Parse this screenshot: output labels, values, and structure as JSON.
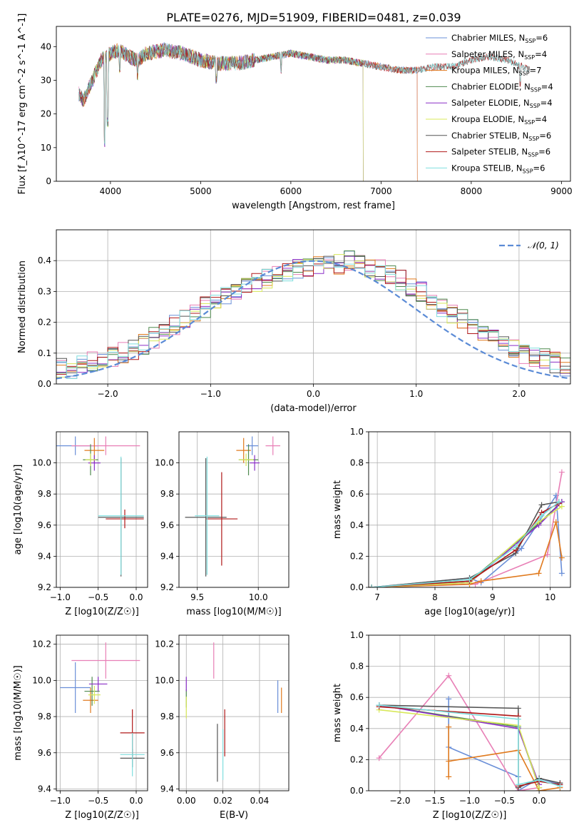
{
  "figure_title": "PLATE=0276, MJD=51909, FIBERID=0481, z=0.039",
  "colors": {
    "chabrier_miles": "#6a8fd8",
    "salpeter_miles": "#e87fb6",
    "kroupa_miles": "#e07a1e",
    "chabrier_elodie": "#4f8a4f",
    "salpeter_elodie": "#8a2fc6",
    "kroupa_elodie": "#d8e85a",
    "chabrier_stelib": "#555555",
    "salpeter_stelib": "#b01818",
    "kroupa_stelib": "#7fdede",
    "normal_curve": "#5b8bd6"
  },
  "chart_data": [
    {
      "type": "line",
      "xlabel": "wavelength [Angstrom, rest frame]",
      "ylabel": "Flux [f_λ10^-17 erg cm^-2 s^-1 A^-1]",
      "xlim": [
        3400,
        9100
      ],
      "ylim": [
        0,
        46
      ],
      "xticks": [
        4000,
        5000,
        6000,
        7000,
        8000,
        9000
      ],
      "yticks": [
        0,
        10,
        20,
        30,
        40
      ],
      "legend_position": "top-right",
      "series": [
        {
          "name": "Chabrier MILES, N_SSP=6",
          "color_key": "chabrier_miles",
          "x": [
            3650,
            7400
          ]
        },
        {
          "name": "Salpeter MILES, N_SSP=4",
          "color_key": "salpeter_miles",
          "x": [
            3650,
            7400
          ]
        },
        {
          "name": "Kroupa MILES, N_SSP=7",
          "color_key": "kroupa_miles",
          "x": [
            3650,
            7400
          ]
        },
        {
          "name": "Chabrier ELODIE, N_SSP=4",
          "color_key": "chabrier_elodie",
          "x": [
            3650,
            6800
          ]
        },
        {
          "name": "Salpeter ELODIE, N_SSP=4",
          "color_key": "salpeter_elodie",
          "x": [
            3650,
            6800
          ]
        },
        {
          "name": "Kroupa ELODIE, N_SSP=4",
          "color_key": "kroupa_elodie",
          "x": [
            3650,
            6800
          ]
        },
        {
          "name": "Chabrier STELIB, N_SSP=6",
          "color_key": "chabrier_stelib",
          "x": [
            3650,
            8650
          ]
        },
        {
          "name": "Salpeter STELIB, N_SSP=6",
          "color_key": "salpeter_stelib",
          "x": [
            3650,
            8650
          ]
        },
        {
          "name": "Kroupa STELIB, N_SSP=6",
          "color_key": "kroupa_stelib",
          "x": [
            3650,
            8650
          ]
        }
      ],
      "continuum_x": [
        3650,
        3700,
        3800,
        3900,
        4000,
        4100,
        4200,
        4300,
        4400,
        4600,
        4800,
        5000,
        5200,
        5400,
        5600,
        5800,
        6000,
        6200,
        6400,
        6600,
        6800,
        7000,
        7200,
        7400,
        7600,
        7800,
        8000,
        8200,
        8400,
        8650
      ],
      "continuum_y": [
        26,
        24,
        30,
        36,
        38,
        39,
        37,
        36,
        38,
        39,
        38,
        36,
        35,
        35,
        36,
        37,
        38,
        37,
        36,
        36,
        35,
        34,
        33,
        33,
        34,
        34,
        36,
        37,
        36,
        33
      ],
      "absorption_lines": [
        {
          "x": 3934,
          "depth_to": 10
        },
        {
          "x": 3968,
          "depth_to": 16
        },
        {
          "x": 4102,
          "depth_to": 32
        },
        {
          "x": 4300,
          "depth_to": 30
        },
        {
          "x": 5175,
          "depth_to": 29
        },
        {
          "x": 5890,
          "depth_to": 32
        },
        {
          "x": 8542,
          "depth_to": 28
        }
      ]
    },
    {
      "type": "bar",
      "xlabel": "(data-model)/error",
      "ylabel": "Normed distribution",
      "xlim": [
        -2.5,
        2.5
      ],
      "ylim": [
        0,
        0.5
      ],
      "xticks": [
        -2,
        -1,
        0,
        1,
        2
      ],
      "yticks": [
        0.0,
        0.1,
        0.2,
        0.3,
        0.4
      ],
      "bin_edges_start": -2.5,
      "bin_width": 0.1,
      "legend_position": "top-right",
      "normal_curve": {
        "name": "𝒩(0, 1)",
        "mean": 0,
        "sigma": 1
      },
      "histogram_profile": [
        0.05,
        0.05,
        0.06,
        0.07,
        0.08,
        0.09,
        0.1,
        0.11,
        0.13,
        0.15,
        0.17,
        0.19,
        0.21,
        0.23,
        0.25,
        0.27,
        0.29,
        0.3,
        0.32,
        0.33,
        0.34,
        0.35,
        0.36,
        0.37,
        0.38,
        0.38,
        0.39,
        0.39,
        0.4,
        0.39,
        0.38,
        0.37,
        0.36,
        0.34,
        0.32,
        0.3,
        0.27,
        0.25,
        0.23,
        0.21,
        0.19,
        0.17,
        0.15,
        0.13,
        0.12,
        0.1,
        0.09,
        0.08,
        0.07,
        0.06
      ]
    },
    {
      "type": "scatter",
      "xlabel": "Z [log10(Z/Z☉)]",
      "ylabel": "age [log10(age/yr)]",
      "xlim": [
        -1.05,
        0.15
      ],
      "ylim": [
        9.2,
        10.2
      ],
      "xticks": [
        -1.0,
        -0.5,
        0.0
      ],
      "yticks": [
        9.2,
        9.4,
        9.6,
        9.8,
        10.0
      ],
      "points": [
        {
          "key": "chabrier_miles",
          "x": -0.8,
          "y": 10.11,
          "xerr": 0.3,
          "yerr": 0.06
        },
        {
          "key": "salpeter_miles",
          "x": -0.4,
          "y": 10.11,
          "xerr": 0.45,
          "yerr": 0.06
        },
        {
          "key": "kroupa_miles",
          "x": -0.55,
          "y": 10.08,
          "xerr": 0.13,
          "yerr": 0.08
        },
        {
          "key": "chabrier_elodie",
          "x": -0.6,
          "y": 10.02,
          "xerr": 0.1,
          "yerr": 0.1
        },
        {
          "key": "salpeter_elodie",
          "x": -0.55,
          "y": 10.0,
          "xerr": 0.08,
          "yerr": 0.05
        },
        {
          "key": "kroupa_elodie",
          "x": -0.6,
          "y": 10.02,
          "xerr": 0.07,
          "yerr": 0.04
        },
        {
          "key": "chabrier_stelib",
          "x": -0.2,
          "y": 9.65,
          "xerr": 0.3,
          "yerr": 0.38
        },
        {
          "key": "salpeter_stelib",
          "x": -0.15,
          "y": 9.64,
          "xerr": 0.25,
          "yerr": 0.06
        },
        {
          "key": "kroupa_stelib",
          "x": -0.2,
          "y": 9.66,
          "xerr": 0.3,
          "yerr": 0.38
        }
      ]
    },
    {
      "type": "scatter",
      "xlabel": "mass [log10(M/M☉)]",
      "ylabel": "",
      "xlim": [
        9.35,
        10.25
      ],
      "ylim": [
        9.2,
        10.2
      ],
      "xticks": [
        9.5,
        10.0
      ],
      "yticks": [
        9.2,
        9.4,
        9.6,
        9.8,
        10.0
      ],
      "points": [
        {
          "key": "chabrier_miles",
          "x": 9.95,
          "y": 10.11,
          "xerr": 0.05,
          "yerr": 0.06
        },
        {
          "key": "salpeter_miles",
          "x": 10.12,
          "y": 10.11,
          "xerr": 0.06,
          "yerr": 0.06
        },
        {
          "key": "kroupa_miles",
          "x": 9.88,
          "y": 10.08,
          "xerr": 0.06,
          "yerr": 0.08
        },
        {
          "key": "chabrier_elodie",
          "x": 9.92,
          "y": 10.02,
          "xerr": 0.08,
          "yerr": 0.1
        },
        {
          "key": "salpeter_elodie",
          "x": 9.97,
          "y": 10.0,
          "xerr": 0.04,
          "yerr": 0.05
        },
        {
          "key": "kroupa_elodie",
          "x": 9.9,
          "y": 10.02,
          "xerr": 0.06,
          "yerr": 0.04
        },
        {
          "key": "chabrier_stelib",
          "x": 9.57,
          "y": 9.65,
          "xerr": 0.17,
          "yerr": 0.38
        },
        {
          "key": "salpeter_stelib",
          "x": 9.7,
          "y": 9.64,
          "xerr": 0.13,
          "yerr": 0.3
        },
        {
          "key": "kroupa_stelib",
          "x": 9.58,
          "y": 9.66,
          "xerr": 0.1,
          "yerr": 0.38
        }
      ]
    },
    {
      "type": "line",
      "xlabel": "age [log10(age/yr)]",
      "ylabel": "mass weight",
      "xlim": [
        6.85,
        10.35
      ],
      "ylim": [
        0,
        1.0
      ],
      "xticks": [
        7,
        8,
        9,
        10
      ],
      "yticks": [
        0.0,
        0.2,
        0.4,
        0.6,
        0.8,
        1.0
      ],
      "series": [
        {
          "key": "chabrier_miles",
          "x": [
            6.9,
            8.6,
            8.8,
            9.5,
            10.1,
            10.2
          ],
          "y": [
            0.0,
            0.06,
            0.03,
            0.25,
            0.59,
            0.09
          ]
        },
        {
          "key": "salpeter_miles",
          "x": [
            6.9,
            8.7,
            9.95,
            10.2
          ],
          "y": [
            0.0,
            0.02,
            0.21,
            0.74
          ]
        },
        {
          "key": "kroupa_miles",
          "x": [
            6.9,
            8.6,
            8.8,
            9.8,
            10.1,
            10.2
          ],
          "y": [
            0.0,
            0.02,
            0.04,
            0.09,
            0.42,
            0.19
          ]
        },
        {
          "key": "chabrier_elodie",
          "x": [
            6.9,
            8.6,
            9.8,
            10.2
          ],
          "y": [
            0.0,
            0.04,
            0.41,
            0.55
          ]
        },
        {
          "key": "salpeter_elodie",
          "x": [
            6.9,
            8.6,
            9.8,
            10.2
          ],
          "y": [
            0.0,
            0.03,
            0.4,
            0.55
          ]
        },
        {
          "key": "kroupa_elodie",
          "x": [
            6.9,
            8.6,
            9.8,
            10.2
          ],
          "y": [
            0.0,
            0.03,
            0.42,
            0.52
          ]
        },
        {
          "key": "chabrier_stelib",
          "x": [
            6.9,
            8.6,
            9.4,
            9.85,
            10.15
          ],
          "y": [
            0.0,
            0.06,
            0.22,
            0.53,
            0.55
          ]
        },
        {
          "key": "salpeter_stelib",
          "x": [
            6.9,
            8.6,
            9.4,
            9.85,
            10.15
          ],
          "y": [
            0.0,
            0.04,
            0.24,
            0.48,
            0.54
          ]
        },
        {
          "key": "kroupa_stelib",
          "x": [
            6.9,
            8.6,
            9.4,
            9.85,
            10.15
          ],
          "y": [
            0.0,
            0.05,
            0.26,
            0.46,
            0.55
          ]
        }
      ]
    },
    {
      "type": "scatter",
      "xlabel": "Z [log10(Z/Z☉)]",
      "ylabel": "mass [log10(M/M☉)]",
      "xlim": [
        -1.05,
        0.15
      ],
      "ylim": [
        9.39,
        10.25
      ],
      "xticks": [
        -1.0,
        -0.5,
        0.0
      ],
      "yticks": [
        9.4,
        9.6,
        9.8,
        10.0,
        10.2
      ],
      "points": [
        {
          "key": "chabrier_miles",
          "x": -0.8,
          "y": 9.96,
          "xerr": 0.2,
          "yerr": 0.14
        },
        {
          "key": "salpeter_miles",
          "x": -0.4,
          "y": 10.11,
          "xerr": 0.45,
          "yerr": 0.1
        },
        {
          "key": "kroupa_miles",
          "x": -0.6,
          "y": 9.89,
          "xerr": 0.1,
          "yerr": 0.07
        },
        {
          "key": "chabrier_elodie",
          "x": -0.58,
          "y": 9.94,
          "xerr": 0.1,
          "yerr": 0.08
        },
        {
          "key": "salpeter_elodie",
          "x": -0.5,
          "y": 9.98,
          "xerr": 0.12,
          "yerr": 0.04
        },
        {
          "key": "kroupa_elodie",
          "x": -0.55,
          "y": 9.92,
          "xerr": 0.08,
          "yerr": 0.05
        },
        {
          "key": "chabrier_stelib",
          "x": -0.05,
          "y": 9.57,
          "xerr": 0.16,
          "yerr": 0.05
        },
        {
          "key": "salpeter_stelib",
          "x": -0.05,
          "y": 9.71,
          "xerr": 0.16,
          "yerr": 0.13
        },
        {
          "key": "kroupa_stelib",
          "x": -0.05,
          "y": 9.59,
          "xerr": 0.16,
          "yerr": 0.12
        }
      ]
    },
    {
      "type": "scatter",
      "xlabel": "E(B-V)",
      "ylabel": "",
      "xlim": [
        -0.004,
        0.056
      ],
      "ylim": [
        9.39,
        10.25
      ],
      "xticks": [
        0.0,
        0.02,
        0.04
      ],
      "yticks": [
        9.4,
        9.6,
        9.8,
        10.0,
        10.2
      ],
      "points": [
        {
          "key": "chabrier_miles",
          "x": 0.05,
          "y": 9.91,
          "xerr": 0,
          "yerr": 0.09
        },
        {
          "key": "salpeter_miles",
          "x": 0.015,
          "y": 10.11,
          "xerr": 0,
          "yerr": 0.1
        },
        {
          "key": "kroupa_miles",
          "x": 0.052,
          "y": 9.89,
          "xerr": 0,
          "yerr": 0.07
        },
        {
          "key": "chabrier_elodie",
          "x": 0.0,
          "y": 9.9,
          "xerr": 0,
          "yerr": 0.05
        },
        {
          "key": "salpeter_elodie",
          "x": 0.0,
          "y": 9.98,
          "xerr": 0,
          "yerr": 0.04
        },
        {
          "key": "kroupa_elodie",
          "x": 0.0,
          "y": 9.85,
          "xerr": 0,
          "yerr": 0.06
        },
        {
          "key": "chabrier_stelib",
          "x": 0.017,
          "y": 9.6,
          "xerr": 0,
          "yerr": 0.16
        },
        {
          "key": "salpeter_stelib",
          "x": 0.021,
          "y": 9.71,
          "xerr": 0,
          "yerr": 0.13
        },
        {
          "key": "kroupa_stelib",
          "x": 0.02,
          "y": 9.59,
          "xerr": 0,
          "yerr": 0.14
        }
      ]
    },
    {
      "type": "line",
      "xlabel": "Z [log10(Z/Z☉)]",
      "ylabel": "mass weight",
      "xlim": [
        -2.45,
        0.45
      ],
      "ylim": [
        0,
        1.0
      ],
      "xticks": [
        -2.0,
        -1.5,
        -1.0,
        -0.5,
        0.0
      ],
      "yticks": [
        0.0,
        0.2,
        0.4,
        0.6,
        0.8,
        1.0
      ],
      "series": [
        {
          "key": "chabrier_miles",
          "x": [
            -1.3,
            -1.3,
            -0.3,
            -0.3,
            0.0,
            0.3
          ],
          "y": [
            0.59,
            0.28,
            0.09,
            0.0,
            0.08,
            0.04
          ]
        },
        {
          "key": "salpeter_miles",
          "x": [
            -2.3,
            -1.3,
            -0.3,
            0.0
          ],
          "y": [
            0.21,
            0.74,
            0.0,
            0.02
          ]
        },
        {
          "key": "kroupa_miles",
          "x": [
            -1.3,
            -1.3,
            -1.3,
            -0.3,
            0.0,
            0.3
          ],
          "y": [
            0.41,
            0.09,
            0.19,
            0.26,
            0.0,
            0.02
          ]
        },
        {
          "key": "chabrier_elodie",
          "x": [
            -2.3,
            -0.3,
            0.0
          ],
          "y": [
            0.55,
            0.41,
            0.02
          ]
        },
        {
          "key": "salpeter_elodie",
          "x": [
            -2.3,
            -0.3,
            0.0
          ],
          "y": [
            0.55,
            0.4,
            0.04
          ]
        },
        {
          "key": "kroupa_elodie",
          "x": [
            -2.3,
            -0.3,
            0.0
          ],
          "y": [
            0.52,
            0.42,
            0.02
          ]
        },
        {
          "key": "chabrier_stelib",
          "x": [
            -2.3,
            -0.3,
            -0.3,
            0.0,
            0.3
          ],
          "y": [
            0.55,
            0.53,
            0.02,
            0.08,
            0.05
          ]
        },
        {
          "key": "salpeter_stelib",
          "x": [
            -2.3,
            -0.3,
            -0.3,
            0.0,
            0.3
          ],
          "y": [
            0.54,
            0.48,
            0.03,
            0.06,
            0.04
          ]
        },
        {
          "key": "kroupa_stelib",
          "x": [
            -2.3,
            -0.3,
            -0.3,
            0.0,
            0.3
          ],
          "y": [
            0.55,
            0.46,
            0.04,
            0.07,
            0.03
          ]
        }
      ]
    }
  ]
}
